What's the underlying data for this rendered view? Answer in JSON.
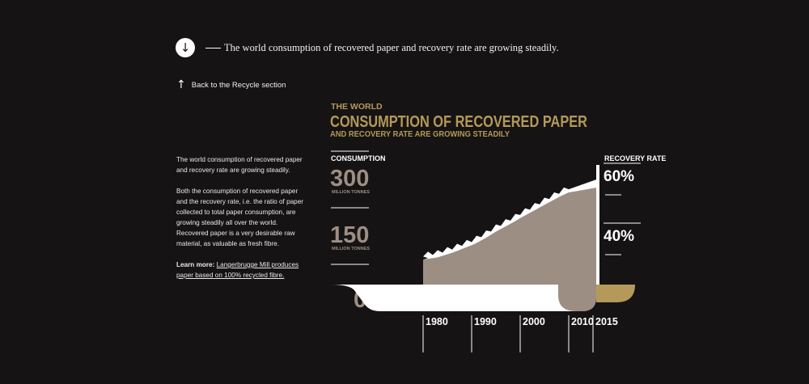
{
  "nav": {
    "down_arrow": "↓",
    "intro_text": "The world consumption of recovered paper and recovery rate are growing steadily.",
    "back_arrow": "↑",
    "back_label": "Back to the Recycle section"
  },
  "article": {
    "p1": "The world consumption of recovered paper and recovery rate are growing steadily.",
    "p2": "Both the consumption of recovered paper and the recovery rate, i.e. the ratio of paper collected to total paper consumption, are growing steadily all over the world. Recovered paper is a very desirable raw material, as valuable as fresh fibre.",
    "learn_more_label": "Learn more:",
    "learn_more_link": "Langerbrugge Mill produces paper based on 100% recycled fibre."
  },
  "colors": {
    "background": "#151313",
    "gold": "#b5995a",
    "taupe": "#9d8e83",
    "white": "#ffffff"
  },
  "chart_data": {
    "type": "area",
    "title_line1": "THE WORLD",
    "title_line2": "CONSUMPTION OF RECOVERED PAPER",
    "title_line3": "AND RECOVERY RATE ARE GROWING STEADILY",
    "left_axis": {
      "label": "CONSUMPTION",
      "ticks": [
        {
          "value": 300,
          "text": "300",
          "unit": "MILLION TONNES"
        },
        {
          "value": 150,
          "text": "150",
          "unit": "MILLION TONNES"
        },
        {
          "value": 0,
          "text": "0",
          "unit": ""
        }
      ],
      "ylim": [
        0,
        300
      ]
    },
    "right_axis": {
      "label": "RECOVERY RATE",
      "ticks": [
        {
          "value": 60,
          "text": "60%"
        },
        {
          "value": 40,
          "text": "40%"
        }
      ]
    },
    "x_ticks": [
      "1980",
      "1990",
      "2000",
      "2010",
      "2015"
    ],
    "series": [
      {
        "x": [
          1980,
          1981,
          1982,
          1983,
          1984,
          1985,
          1986,
          1987,
          1988,
          1989,
          1990,
          1991,
          1992,
          1993,
          1994,
          1995,
          1996,
          1997,
          1998,
          1999,
          2000,
          2001,
          2002,
          2003,
          2004,
          2005,
          2006,
          2007,
          2008,
          2009,
          2010
        ],
        "values": [
          66,
          68,
          70,
          72,
          76,
          80,
          84,
          89,
          94,
          99,
          104,
          110,
          117,
          124,
          132,
          140,
          147,
          154,
          161,
          168,
          176,
          183,
          190,
          197,
          204,
          211,
          218,
          225,
          232,
          238,
          244
        ]
      }
    ]
  }
}
